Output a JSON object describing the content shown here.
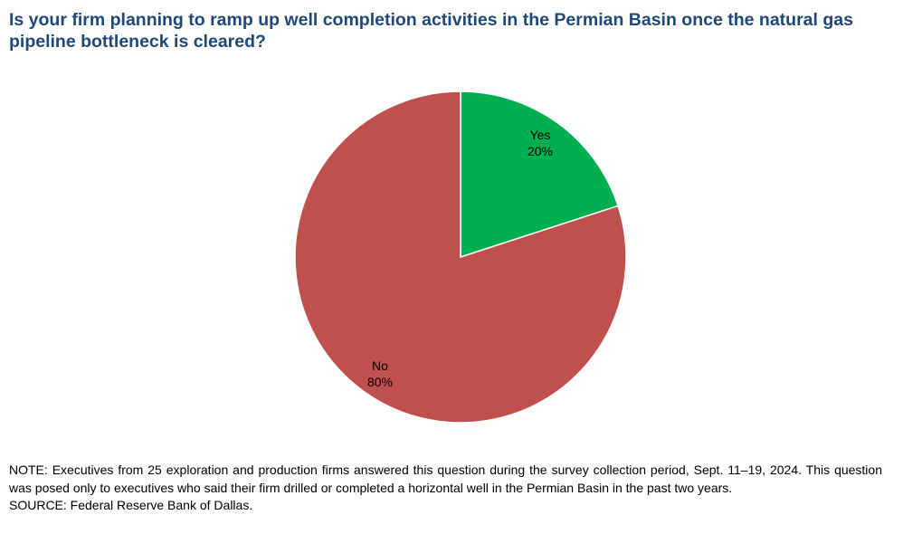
{
  "title": "Is your firm planning to ramp up well completion activities in the Permian Basin once the natural gas pipeline bottleneck is cleared?",
  "chart_data": {
    "type": "pie",
    "title": "Is your firm planning to ramp up well completion activities in the Permian Basin once the natural gas pipeline bottleneck is cleared?",
    "slices": [
      {
        "label": "Yes",
        "value": 20,
        "value_label": "20%",
        "color": "#00b050"
      },
      {
        "label": "No",
        "value": 80,
        "value_label": "80%",
        "color": "#c0504d"
      }
    ],
    "start_angle": "12 o'clock",
    "direction": "clockwise",
    "slice_border_color": "#ffffff",
    "legend": "none"
  },
  "note": "NOTE: Executives from 25 exploration and production firms answered this question during the survey collection period, Sept. 11–19, 2024. This question was posed only to executives who said their firm drilled or completed a horizontal well in the Permian Basin in the past two years.",
  "source": "SOURCE: Federal Reserve Bank of Dallas."
}
